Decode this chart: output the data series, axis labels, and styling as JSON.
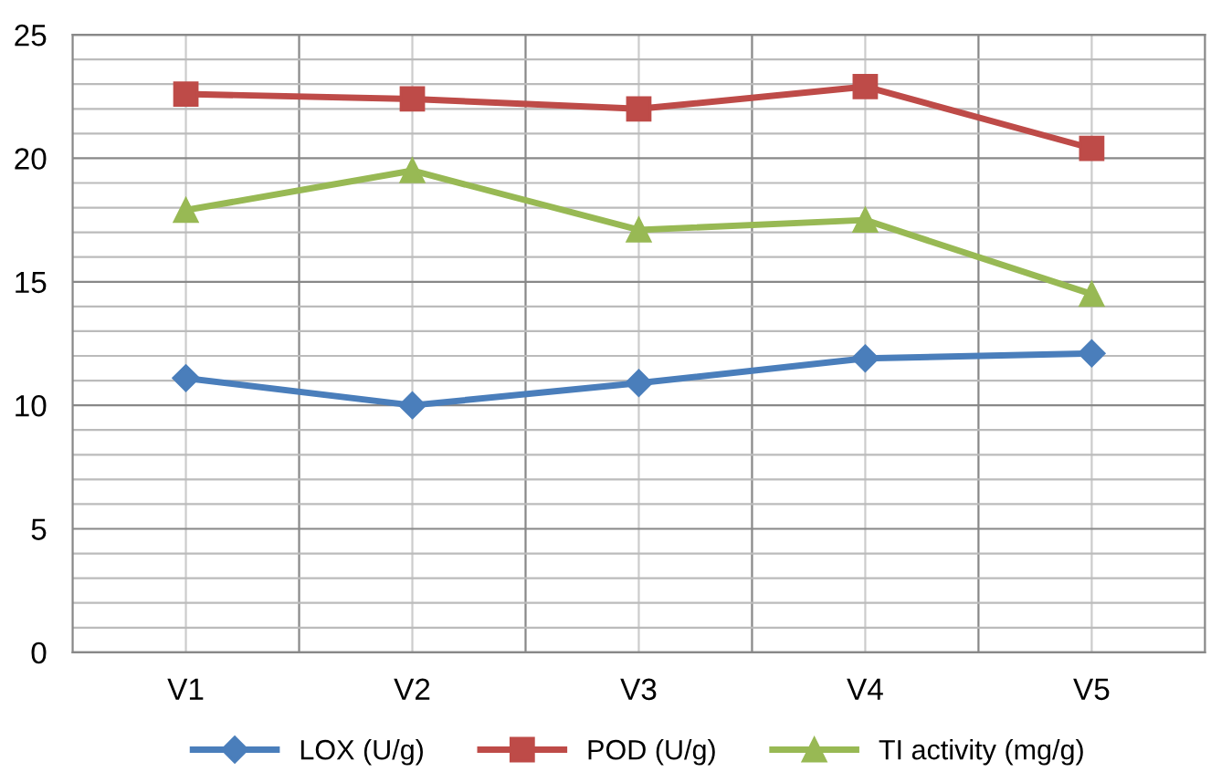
{
  "chart_data": {
    "type": "line",
    "categories": [
      "V1",
      "V2",
      "V3",
      "V4",
      "V5"
    ],
    "series": [
      {
        "name": "LOX (U/g)",
        "color": "#4a7ebb",
        "marker": "diamond",
        "values": [
          11.1,
          10.0,
          10.9,
          11.9,
          12.1
        ]
      },
      {
        "name": "POD (U/g)",
        "color": "#be4b48",
        "marker": "square",
        "values": [
          22.6,
          22.4,
          22.0,
          22.9,
          20.4
        ]
      },
      {
        "name": "TI activity (mg/g)",
        "color": "#98b954",
        "marker": "triangle",
        "values": [
          17.9,
          19.5,
          17.1,
          17.5,
          14.5
        ]
      }
    ],
    "ylim": [
      0,
      25
    ],
    "yticks": [
      0,
      5,
      10,
      15,
      20,
      25
    ],
    "grid": true,
    "legend": "bottom",
    "line_style": "solid"
  }
}
